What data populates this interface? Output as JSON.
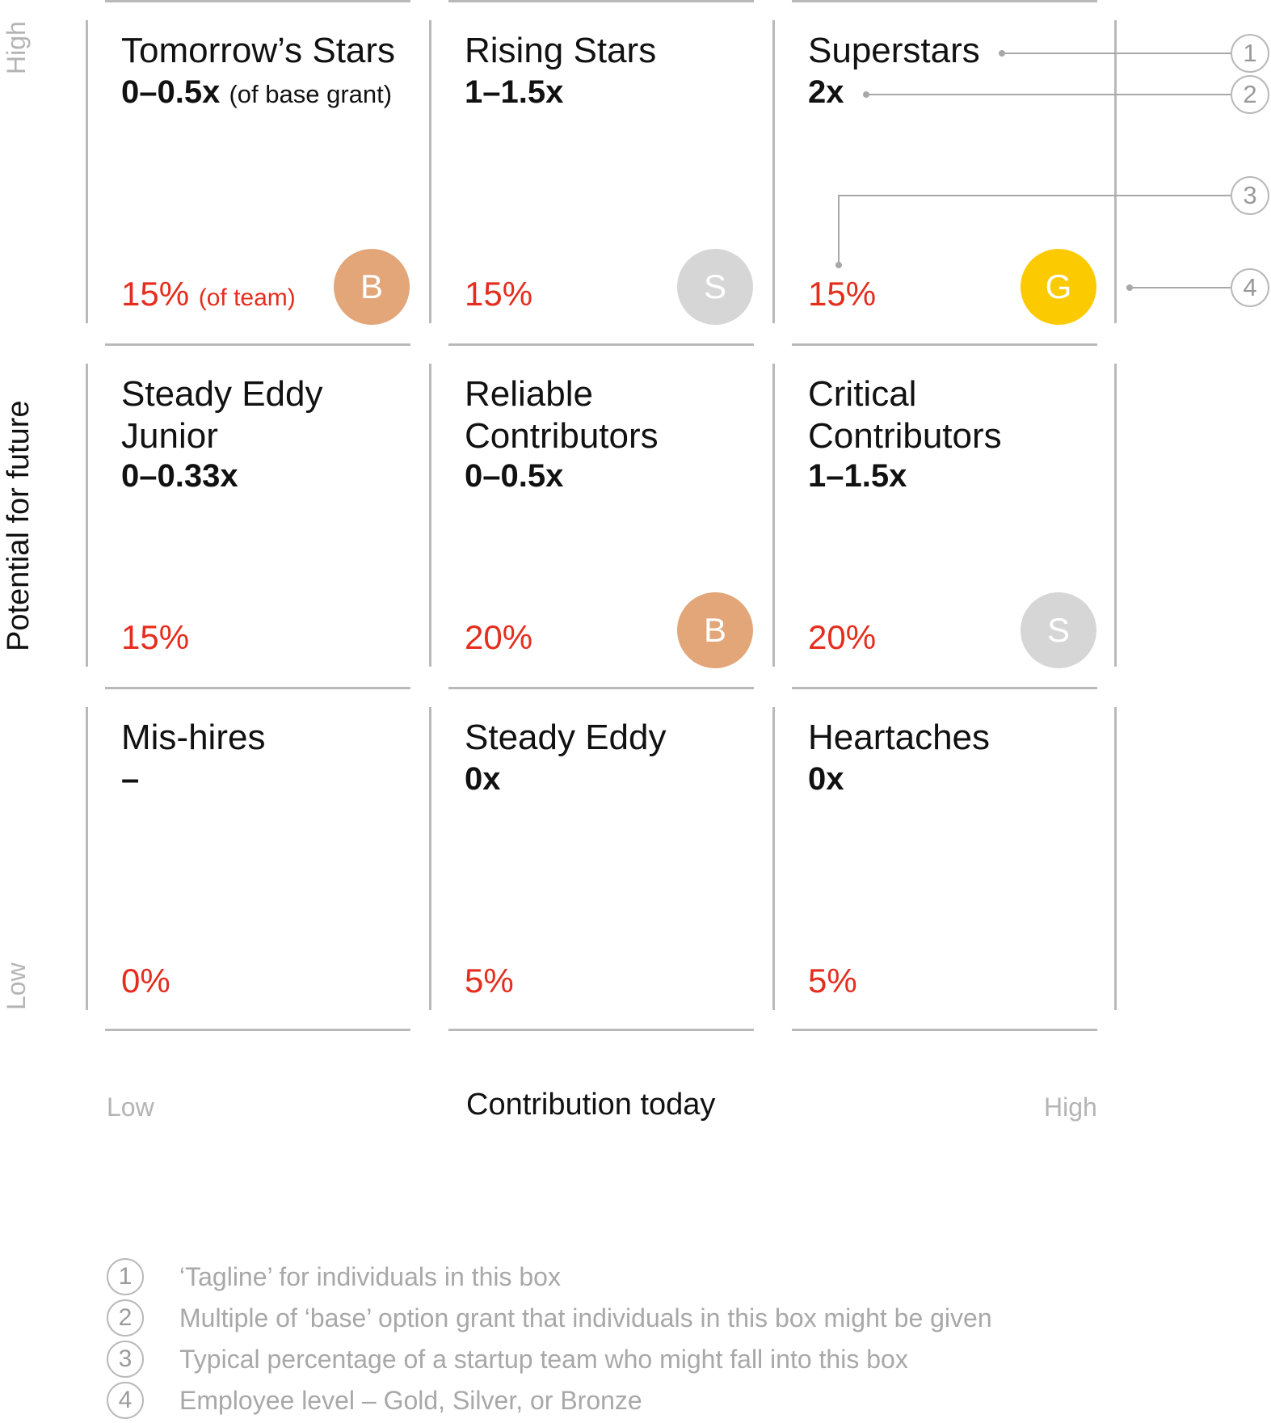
{
  "axes": {
    "y_title": "Potential for future",
    "y_high": "High",
    "y_low": "Low",
    "x_title": "Contribution today",
    "x_low": "Low",
    "x_high": "High"
  },
  "colors": {
    "gold": "#fcca00",
    "silver": "#d6d6d6",
    "bronze": "#e2a679",
    "percent_red": "#e52d1e",
    "rule_gray": "#b9b9b9"
  },
  "grid": {
    "rows": [
      {
        "cells": [
          {
            "tagline": "Tomorrow’s Stars",
            "multiple": "0–0.5x",
            "multiple_note": "(of base grant)",
            "percent": "15%",
            "percent_note": "(of team)",
            "level": "B",
            "level_color": "#e2a679"
          },
          {
            "tagline": "Rising Stars",
            "multiple": "1–1.5x",
            "multiple_note": "",
            "percent": "15%",
            "percent_note": "",
            "level": "S",
            "level_color": "#d6d6d6"
          },
          {
            "tagline": "Superstars",
            "multiple": "2x",
            "multiple_note": "",
            "percent": "15%",
            "percent_note": "",
            "level": "G",
            "level_color": "#fcca00"
          }
        ]
      },
      {
        "cells": [
          {
            "tagline": "Steady Eddy Junior",
            "multiple": "0–0.33x",
            "multiple_note": "",
            "percent": "15%",
            "percent_note": "",
            "level": "",
            "level_color": ""
          },
          {
            "tagline": "Reliable Contributors",
            "multiple": "0–0.5x",
            "multiple_note": "",
            "percent": "20%",
            "percent_note": "",
            "level": "B",
            "level_color": "#e2a679"
          },
          {
            "tagline": "Critical Contributors",
            "multiple": "1–1.5x",
            "multiple_note": "",
            "percent": "20%",
            "percent_note": "",
            "level": "S",
            "level_color": "#d6d6d6"
          }
        ]
      },
      {
        "cells": [
          {
            "tagline": "Mis-hires",
            "multiple": "–",
            "multiple_note": "",
            "percent": "0%",
            "percent_note": "",
            "level": "",
            "level_color": ""
          },
          {
            "tagline": "Steady Eddy",
            "multiple": "0x",
            "multiple_note": "",
            "percent": "5%",
            "percent_note": "",
            "level": "",
            "level_color": ""
          },
          {
            "tagline": "Heartaches",
            "multiple": "0x",
            "multiple_note": "",
            "percent": "5%",
            "percent_note": "",
            "level": "",
            "level_color": ""
          }
        ]
      }
    ]
  },
  "callouts": [
    "1",
    "2",
    "3",
    "4"
  ],
  "legend": [
    {
      "num": "1",
      "text": "‘Tagline’ for individuals in this box"
    },
    {
      "num": "2",
      "text": "Multiple of ‘base’ option grant that individuals in this box might be given"
    },
    {
      "num": "3",
      "text": "Typical percentage of a startup team who might fall into this box"
    },
    {
      "num": "4",
      "text": "Employee level – Gold, Silver, or Bronze"
    }
  ]
}
